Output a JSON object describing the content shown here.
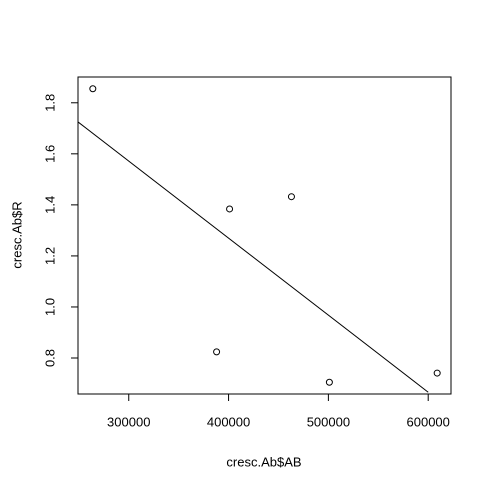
{
  "chart_data": {
    "type": "scatter",
    "xlabel": "cresc.Ab$AB",
    "ylabel": "cresc.Ab$R",
    "x": [
      264000,
      388000,
      401000,
      463000,
      501000,
      609000
    ],
    "y": [
      1.855,
      0.824,
      1.384,
      1.432,
      0.705,
      0.741
    ],
    "fit": {
      "x": [
        249160,
        600000
      ],
      "y": [
        1.725,
        0.666
      ]
    },
    "xlim": [
      249160,
      622840
    ],
    "ylim": [
      0.659,
      1.901
    ],
    "xticks": [
      300000,
      400000,
      500000,
      600000
    ],
    "yticks": [
      0.8,
      {
        "value": 1,
        "label": "1.0"
      },
      1.2,
      1.4,
      1.6,
      1.8
    ],
    "color": "#000000"
  }
}
